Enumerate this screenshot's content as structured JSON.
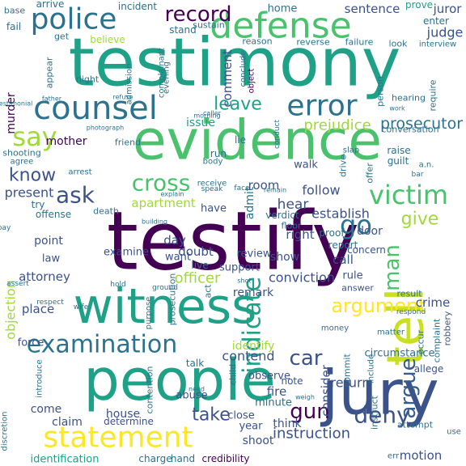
{
  "word_cloud": {
    "background": "#ffffff",
    "palette": [
      "#440154",
      "#46327e",
      "#365c8d",
      "#277f8e",
      "#1fa187",
      "#4ac16d",
      "#a0da39",
      "#fde725"
    ],
    "words": [
      {
        "text": "testimony",
        "color": "#1fa187"
      },
      {
        "text": "testify",
        "color": "#440154"
      },
      {
        "text": "evidence",
        "color": "#4ac16d"
      },
      {
        "text": "people",
        "color": "#1fa187"
      },
      {
        "text": "witness",
        "color": "#1fa187"
      },
      {
        "text": "jury",
        "color": "#3b528b"
      },
      {
        "text": "tell",
        "color": "#c8e020"
      },
      {
        "text": "defense",
        "color": "#4ac16d"
      },
      {
        "text": "counsel",
        "color": "#2c728e"
      },
      {
        "text": "police",
        "color": "#2c728e"
      },
      {
        "text": "error",
        "color": "#2c728e"
      },
      {
        "text": "statement",
        "color": "#fde725"
      },
      {
        "text": "examination",
        "color": "#2c728e"
      },
      {
        "text": "victim",
        "color": "#4ac16d"
      },
      {
        "text": "go",
        "color": "#2c728e"
      },
      {
        "text": "say",
        "color": "#a0da39"
      },
      {
        "text": "ask",
        "color": "#3b528b"
      },
      {
        "text": "argument",
        "color": "#fde725"
      },
      {
        "text": "cross",
        "color": "#4ac16d"
      },
      {
        "text": "deny",
        "color": "#3b528b"
      },
      {
        "text": "record",
        "color": "#440154"
      },
      {
        "text": "leave",
        "color": "#1fa187"
      },
      {
        "text": "argue",
        "color": "#365c8d"
      },
      {
        "text": "man",
        "color": "#4ac16d"
      },
      {
        "text": "car",
        "color": "#3b528b"
      },
      {
        "text": "gun",
        "color": "#440154"
      },
      {
        "text": "take",
        "color": "#3b528b"
      },
      {
        "text": "indicate",
        "color": "#1fa187"
      },
      {
        "text": "give",
        "color": "#a0da39"
      },
      {
        "text": "know",
        "color": "#3b528b"
      },
      {
        "text": "prosecutor",
        "color": "#2c728e"
      },
      {
        "text": "prejudice",
        "color": "#a0da39"
      },
      {
        "text": "judge",
        "color": "#3b528b"
      },
      {
        "text": "juror",
        "color": "#3b528b"
      },
      {
        "text": "instruction",
        "color": "#3b528b"
      },
      {
        "text": "motion",
        "color": "#3b528b"
      },
      {
        "text": "identification",
        "color": "#1fa187"
      },
      {
        "text": "charge",
        "color": "#2c728e"
      },
      {
        "text": "hand",
        "color": "#2c728e"
      },
      {
        "text": "credibility",
        "color": "#440154"
      },
      {
        "text": "comment",
        "color": "#3b528b"
      },
      {
        "text": "sentence",
        "color": "#3b528b"
      },
      {
        "text": "home",
        "color": "#2c728e"
      },
      {
        "text": "incident",
        "color": "#2c728e"
      },
      {
        "text": "arrive",
        "color": "#2c728e"
      },
      {
        "text": "prove",
        "color": "#1fa187"
      },
      {
        "text": "enter",
        "color": "#2c728e"
      },
      {
        "text": "base",
        "color": "#2c728e"
      },
      {
        "text": "fail",
        "color": "#2c728e"
      },
      {
        "text": "believe",
        "color": "#a0da39"
      },
      {
        "text": "get",
        "color": "#2c728e"
      },
      {
        "text": "stand",
        "color": "#2c728e"
      },
      {
        "text": "sustain",
        "color": "#2c728e"
      },
      {
        "text": "reason",
        "color": "#2c728e"
      },
      {
        "text": "reverse",
        "color": "#2c728e"
      },
      {
        "text": "failure",
        "color": "#2c728e"
      },
      {
        "text": "look",
        "color": "#2c728e"
      },
      {
        "text": "interview",
        "color": "#2c728e"
      },
      {
        "text": "appear",
        "color": "#2c728e"
      },
      {
        "text": "night",
        "color": "#2c728e"
      },
      {
        "text": "admission",
        "color": "#2c728e"
      },
      {
        "text": "complainant",
        "color": "#2c728e"
      },
      {
        "text": "evening",
        "color": "#2c728e"
      },
      {
        "text": "conclude",
        "color": "#2c728e"
      },
      {
        "text": "object",
        "color": "#440154"
      },
      {
        "text": "person",
        "color": "#2c728e"
      },
      {
        "text": "require",
        "color": "#2c728e"
      },
      {
        "text": "hearing",
        "color": "#2c728e"
      },
      {
        "text": "conversation",
        "color": "#2c728e"
      },
      {
        "text": "murder",
        "color": "#440154"
      },
      {
        "text": "issue",
        "color": "#1fa187"
      },
      {
        "text": "lie",
        "color": "#2c728e"
      },
      {
        "text": "friend",
        "color": "#2c728e"
      },
      {
        "text": "mother",
        "color": "#440154"
      },
      {
        "text": "shooting",
        "color": "#2c728e"
      },
      {
        "text": "agree",
        "color": "#2c728e"
      },
      {
        "text": "arrest",
        "color": "#2c728e"
      },
      {
        "text": "run",
        "color": "#2c728e"
      },
      {
        "text": "body",
        "color": "#2c728e"
      },
      {
        "text": "walk",
        "color": "#3b528b"
      },
      {
        "text": "drive",
        "color": "#2c728e"
      },
      {
        "text": "offer",
        "color": "#2c728e"
      },
      {
        "text": "raise",
        "color": "#2c728e"
      },
      {
        "text": "guilt",
        "color": "#2c728e"
      },
      {
        "text": "a.n.",
        "color": "#2c728e"
      },
      {
        "text": "bar",
        "color": "#2c728e"
      },
      {
        "text": "room",
        "color": "#3b528b"
      },
      {
        "text": "follow",
        "color": "#3b528b"
      },
      {
        "text": "present",
        "color": "#3b528b"
      },
      {
        "text": "try",
        "color": "#2c728e"
      },
      {
        "text": "offense",
        "color": "#2c728e"
      },
      {
        "text": "death",
        "color": "#2c728e"
      },
      {
        "text": "apartment",
        "color": "#a0da39"
      },
      {
        "text": "hear",
        "color": "#3b528b"
      },
      {
        "text": "establish",
        "color": "#3b528b"
      },
      {
        "text": "admit",
        "color": "#2c728e"
      },
      {
        "text": "verdict",
        "color": "#2c728e"
      },
      {
        "text": "floor",
        "color": "#2c728e"
      },
      {
        "text": "have",
        "color": "#3b528b"
      },
      {
        "text": "right",
        "color": "#3b528b"
      },
      {
        "text": "point",
        "color": "#3b528b"
      },
      {
        "text": "law",
        "color": "#3b528b"
      },
      {
        "text": "day",
        "color": "#3b528b"
      },
      {
        "text": "examine",
        "color": "#3b528b"
      },
      {
        "text": "doubt",
        "color": "#3b528b"
      },
      {
        "text": "want",
        "color": "#3b528b"
      },
      {
        "text": "review",
        "color": "#3b528b"
      },
      {
        "text": "show",
        "color": "#3b528b"
      },
      {
        "text": "door",
        "color": "#3b528b"
      },
      {
        "text": "proof",
        "color": "#2c728e"
      },
      {
        "text": "report",
        "color": "#2c728e"
      },
      {
        "text": "concern",
        "color": "#3b528b"
      },
      {
        "text": "call",
        "color": "#3b528b"
      },
      {
        "text": "rule",
        "color": "#3b528b"
      },
      {
        "text": "attorney",
        "color": "#3b528b"
      },
      {
        "text": "officer",
        "color": "#a0da39"
      },
      {
        "text": "live",
        "color": "#2c728e"
      },
      {
        "text": "support",
        "color": "#3b528b"
      },
      {
        "text": "conviction",
        "color": "#3b528b"
      },
      {
        "text": "answer",
        "color": "#3b528b"
      },
      {
        "text": "objection",
        "color": "#a0da39"
      },
      {
        "text": "place",
        "color": "#3b528b"
      },
      {
        "text": "prosecution",
        "color": "#2c728e"
      },
      {
        "text": "purpose",
        "color": "#2c728e"
      },
      {
        "text": "act",
        "color": "#2c728e"
      },
      {
        "text": "remark",
        "color": "#3b528b"
      },
      {
        "text": "result",
        "color": "#2c728e"
      },
      {
        "text": "crime",
        "color": "#3b528b"
      },
      {
        "text": "force",
        "color": "#3b528b"
      },
      {
        "text": "contend",
        "color": "#3b528b"
      },
      {
        "text": "return",
        "color": "#3b528b"
      },
      {
        "text": "consider",
        "color": "#3b528b"
      },
      {
        "text": "identify",
        "color": "#a0da39"
      },
      {
        "text": "observe",
        "color": "#3b528b"
      },
      {
        "text": "note",
        "color": "#3b528b"
      },
      {
        "text": "fire",
        "color": "#3b528b"
      },
      {
        "text": "minute",
        "color": "#2c728e"
      },
      {
        "text": "occur",
        "color": "#2c728e"
      },
      {
        "text": "complaint",
        "color": "#2c728e"
      },
      {
        "text": "robbery",
        "color": "#3b528b"
      },
      {
        "text": "circumstance",
        "color": "#2c728e"
      },
      {
        "text": "allege",
        "color": "#3b528b"
      },
      {
        "text": "talk",
        "color": "#2c728e"
      },
      {
        "text": "child",
        "color": "#2c728e"
      },
      {
        "text": "abuse",
        "color": "#3b528b"
      },
      {
        "text": "house",
        "color": "#3b528b"
      },
      {
        "text": "claim",
        "color": "#3b528b"
      },
      {
        "text": "come",
        "color": "#3b528b"
      },
      {
        "text": "determine",
        "color": "#3b528b"
      },
      {
        "text": "year",
        "color": "#3b528b"
      },
      {
        "text": "think",
        "color": "#3b528b"
      },
      {
        "text": "close",
        "color": "#3b528b"
      },
      {
        "text": "shoot",
        "color": "#3b528b"
      },
      {
        "text": "commit",
        "color": "#2c728e"
      },
      {
        "text": "instruct",
        "color": "#2c728e"
      },
      {
        "text": "attempt",
        "color": "#2c728e"
      },
      {
        "text": "discretion",
        "color": "#2c728e"
      },
      {
        "text": "introduce",
        "color": "#2c728e"
      },
      {
        "text": "contention",
        "color": "#2c728e"
      },
      {
        "text": "use",
        "color": "#2c728e"
      },
      {
        "text": "err",
        "color": "#2c728e"
      },
      {
        "text": "matter",
        "color": "#2c728e"
      },
      {
        "text": "money",
        "color": "#2c728e"
      },
      {
        "text": "include",
        "color": "#2c728e"
      },
      {
        "text": "respond",
        "color": "#2c728e"
      },
      {
        "text": "explain",
        "color": "#2c728e"
      },
      {
        "text": "receive",
        "color": "#2c728e"
      },
      {
        "text": "speak",
        "color": "#2c728e"
      },
      {
        "text": "remain",
        "color": "#2c728e"
      },
      {
        "text": "slap",
        "color": "#2c728e"
      },
      {
        "text": "conduct",
        "color": "#2c728e"
      },
      {
        "text": "refuse",
        "color": "#2c728e"
      },
      {
        "text": "father",
        "color": "#2c728e"
      },
      {
        "text": "morning",
        "color": "#2c728e"
      },
      {
        "text": "caller",
        "color": "#2c728e"
      },
      {
        "text": "photograph",
        "color": "#2c728e"
      },
      {
        "text": "work",
        "color": "#2c728e"
      },
      {
        "text": "respect",
        "color": "#2c728e"
      },
      {
        "text": "assert",
        "color": "#2c728e"
      },
      {
        "text": "building",
        "color": "#2c728e"
      },
      {
        "text": "hold",
        "color": "#2c728e"
      },
      {
        "text": "ground",
        "color": "#2c728e"
      },
      {
        "text": "weigh",
        "color": "#2c728e"
      },
      {
        "text": "need",
        "color": "#2c728e"
      },
      {
        "text": "shot",
        "color": "#2c728e"
      },
      {
        "text": "testimonial",
        "color": "#2c728e"
      },
      {
        "text": "wife",
        "color": "#2c728e"
      },
      {
        "text": "pay",
        "color": "#2c728e"
      },
      {
        "text": "face",
        "color": "#2c728e"
      }
    ]
  }
}
